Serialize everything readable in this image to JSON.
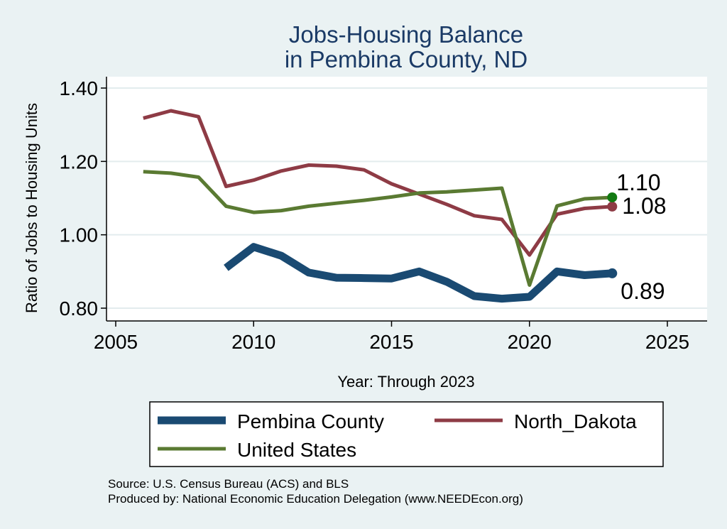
{
  "chart_data": {
    "type": "line",
    "title": [
      "Jobs-Housing Balance",
      "in Pembina County, ND"
    ],
    "xlabel": "Year: Through 2023",
    "ylabel": "Ratio of Jobs to Housing Units",
    "xlim": [
      2005,
      2025
    ],
    "ylim": [
      0.8,
      1.4
    ],
    "xticks": [
      2005,
      2010,
      2015,
      2020,
      2025
    ],
    "yticks": [
      0.8,
      1.0,
      1.2,
      1.4
    ],
    "ytick_labels": [
      "0.80",
      "1.00",
      "1.20",
      "1.40"
    ],
    "grid": true,
    "legend_placement": "bottom",
    "series": [
      {
        "name": "Pembina County",
        "color": "#1a4a72",
        "x": [
          2009,
          2010,
          2011,
          2012,
          2013,
          2014,
          2015,
          2016,
          2017,
          2018,
          2019,
          2020,
          2021,
          2022,
          2023
        ],
        "values": [
          0.91,
          0.967,
          0.943,
          0.897,
          0.883,
          0.882,
          0.881,
          0.9,
          0.872,
          0.833,
          0.826,
          0.831,
          0.9,
          0.89,
          0.895
        ],
        "end_label": "0.89"
      },
      {
        "name": "North_Dakota",
        "color": "#8e3b45",
        "x": [
          2006,
          2007,
          2008,
          2009,
          2010,
          2011,
          2012,
          2013,
          2014,
          2015,
          2016,
          2017,
          2018,
          2019,
          2020,
          2021,
          2022,
          2023
        ],
        "values": [
          1.318,
          1.338,
          1.322,
          1.132,
          1.149,
          1.174,
          1.19,
          1.187,
          1.177,
          1.139,
          1.111,
          1.083,
          1.052,
          1.042,
          0.945,
          1.056,
          1.072,
          1.077
        ],
        "end_label": "1.08"
      },
      {
        "name": "United States",
        "color": "#5a7a32",
        "x": [
          2006,
          2007,
          2008,
          2009,
          2010,
          2011,
          2012,
          2013,
          2014,
          2015,
          2016,
          2017,
          2018,
          2019,
          2020,
          2021,
          2022,
          2023
        ],
        "values": [
          1.172,
          1.168,
          1.157,
          1.078,
          1.061,
          1.066,
          1.078,
          1.086,
          1.094,
          1.103,
          1.114,
          1.117,
          1.122,
          1.127,
          0.863,
          1.079,
          1.098,
          1.102
        ],
        "end_label": "1.10"
      }
    ]
  },
  "footer": {
    "source": "Source: U.S. Census Bureau (ACS) and BLS",
    "produced": "Produced by: National Economic Education Delegation (www.NEEDEcon.org)"
  }
}
